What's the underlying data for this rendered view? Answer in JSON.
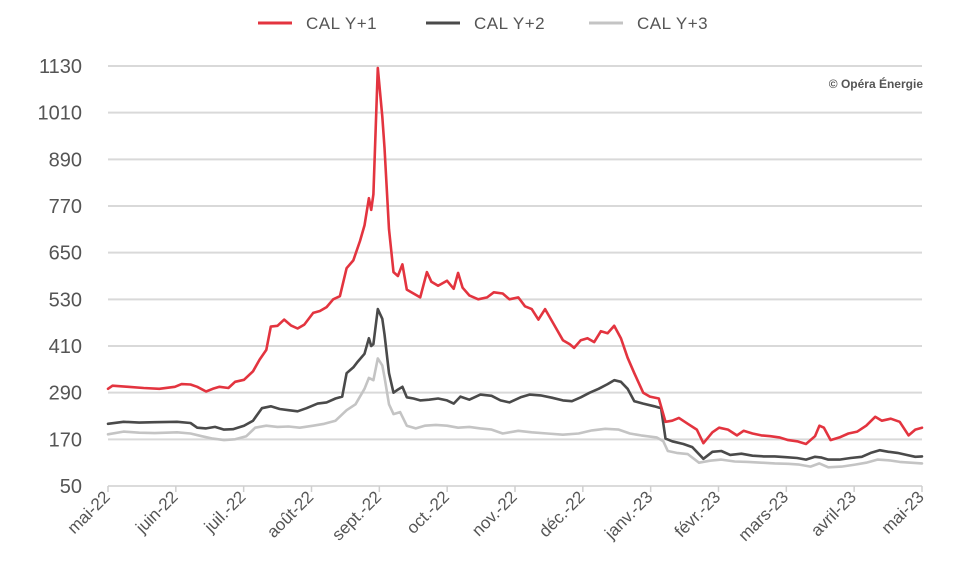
{
  "credit": "© Opéra Énergie",
  "chart_data": {
    "type": "line",
    "title": "",
    "xlabel": "",
    "ylabel": "",
    "ylim": [
      50,
      1130
    ],
    "yticks": [
      50,
      170,
      290,
      410,
      530,
      650,
      770,
      890,
      1010,
      1130
    ],
    "grid": true,
    "legend_position": "top-center",
    "xlim": [
      "2022-05-01",
      "2023-05-01"
    ],
    "x_tick_labels": [
      "mai-22",
      "juin-22",
      "juil.-22",
      "août-22",
      "sept.-22",
      "oct.-22",
      "nov.-22",
      "déc.-22",
      "janv.-23",
      "févr.-23",
      "mars-23",
      "avril-23",
      "mai-23"
    ],
    "series": [
      {
        "name": "CAL Y+1",
        "color": "#e3343f",
        "points": [
          [
            "2022-05-01",
            300
          ],
          [
            "2022-05-03",
            308
          ],
          [
            "2022-05-10",
            305
          ],
          [
            "2022-05-17",
            302
          ],
          [
            "2022-05-24",
            300
          ],
          [
            "2022-05-31",
            305
          ],
          [
            "2022-06-03",
            312
          ],
          [
            "2022-06-07",
            311
          ],
          [
            "2022-06-10",
            305
          ],
          [
            "2022-06-14",
            293
          ],
          [
            "2022-06-17",
            300
          ],
          [
            "2022-06-20",
            305
          ],
          [
            "2022-06-24",
            302
          ],
          [
            "2022-06-27",
            318
          ],
          [
            "2022-07-01",
            323
          ],
          [
            "2022-07-05",
            345
          ],
          [
            "2022-07-08",
            375
          ],
          [
            "2022-07-11",
            400
          ],
          [
            "2022-07-13",
            460
          ],
          [
            "2022-07-16",
            462
          ],
          [
            "2022-07-19",
            478
          ],
          [
            "2022-07-22",
            463
          ],
          [
            "2022-07-25",
            455
          ],
          [
            "2022-07-28",
            465
          ],
          [
            "2022-08-01",
            495
          ],
          [
            "2022-08-04",
            500
          ],
          [
            "2022-08-07",
            510
          ],
          [
            "2022-08-10",
            530
          ],
          [
            "2022-08-13",
            538
          ],
          [
            "2022-08-16",
            610
          ],
          [
            "2022-08-19",
            630
          ],
          [
            "2022-08-22",
            680
          ],
          [
            "2022-08-24",
            720
          ],
          [
            "2022-08-26",
            790
          ],
          [
            "2022-08-27",
            760
          ],
          [
            "2022-08-28",
            800
          ],
          [
            "2022-08-30",
            1125
          ],
          [
            "2022-09-01",
            1000
          ],
          [
            "2022-09-02",
            920
          ],
          [
            "2022-09-04",
            710
          ],
          [
            "2022-09-06",
            600
          ],
          [
            "2022-09-08",
            590
          ],
          [
            "2022-09-10",
            620
          ],
          [
            "2022-09-12",
            555
          ],
          [
            "2022-09-15",
            545
          ],
          [
            "2022-09-18",
            535
          ],
          [
            "2022-09-21",
            600
          ],
          [
            "2022-09-23",
            575
          ],
          [
            "2022-09-26",
            565
          ],
          [
            "2022-09-30",
            578
          ],
          [
            "2022-10-03",
            557
          ],
          [
            "2022-10-05",
            598
          ],
          [
            "2022-10-07",
            560
          ],
          [
            "2022-10-10",
            540
          ],
          [
            "2022-10-14",
            530
          ],
          [
            "2022-10-18",
            535
          ],
          [
            "2022-10-21",
            548
          ],
          [
            "2022-10-25",
            545
          ],
          [
            "2022-10-28",
            530
          ],
          [
            "2022-11-01",
            535
          ],
          [
            "2022-11-04",
            512
          ],
          [
            "2022-11-07",
            505
          ],
          [
            "2022-11-10",
            478
          ],
          [
            "2022-11-13",
            505
          ],
          [
            "2022-11-17",
            465
          ],
          [
            "2022-11-21",
            425
          ],
          [
            "2022-11-24",
            415
          ],
          [
            "2022-11-26",
            405
          ],
          [
            "2022-11-29",
            425
          ],
          [
            "2022-12-02",
            430
          ],
          [
            "2022-12-05",
            420
          ],
          [
            "2022-12-08",
            448
          ],
          [
            "2022-12-11",
            443
          ],
          [
            "2022-12-14",
            462
          ],
          [
            "2022-12-17",
            430
          ],
          [
            "2022-12-20",
            380
          ],
          [
            "2022-12-23",
            340
          ],
          [
            "2022-12-27",
            290
          ],
          [
            "2022-12-30",
            280
          ],
          [
            "2023-01-03",
            275
          ],
          [
            "2023-01-06",
            215
          ],
          [
            "2023-01-09",
            218
          ],
          [
            "2023-01-12",
            225
          ],
          [
            "2023-01-16",
            210
          ],
          [
            "2023-01-20",
            195
          ],
          [
            "2023-01-23",
            160
          ],
          [
            "2023-01-27",
            188
          ],
          [
            "2023-01-30",
            200
          ],
          [
            "2023-02-03",
            195
          ],
          [
            "2023-02-07",
            180
          ],
          [
            "2023-02-10",
            192
          ],
          [
            "2023-02-14",
            185
          ],
          [
            "2023-02-18",
            180
          ],
          [
            "2023-02-22",
            178
          ],
          [
            "2023-02-26",
            175
          ],
          [
            "2023-03-02",
            168
          ],
          [
            "2023-03-06",
            165
          ],
          [
            "2023-03-10",
            158
          ],
          [
            "2023-03-14",
            178
          ],
          [
            "2023-03-16",
            205
          ],
          [
            "2023-03-18",
            200
          ],
          [
            "2023-03-21",
            168
          ],
          [
            "2023-03-25",
            175
          ],
          [
            "2023-03-29",
            185
          ],
          [
            "2023-04-02",
            190
          ],
          [
            "2023-04-06",
            205
          ],
          [
            "2023-04-10",
            228
          ],
          [
            "2023-04-13",
            218
          ],
          [
            "2023-04-17",
            223
          ],
          [
            "2023-04-21",
            215
          ],
          [
            "2023-04-25",
            180
          ],
          [
            "2023-04-28",
            195
          ],
          [
            "2023-05-01",
            200
          ]
        ]
      },
      {
        "name": "CAL Y+2",
        "color": "#4a4a4a",
        "points": [
          [
            "2022-05-01",
            210
          ],
          [
            "2022-05-08",
            215
          ],
          [
            "2022-05-15",
            213
          ],
          [
            "2022-05-22",
            214
          ],
          [
            "2022-06-01",
            215
          ],
          [
            "2022-06-07",
            212
          ],
          [
            "2022-06-10",
            200
          ],
          [
            "2022-06-14",
            198
          ],
          [
            "2022-06-18",
            202
          ],
          [
            "2022-06-22",
            195
          ],
          [
            "2022-06-26",
            196
          ],
          [
            "2022-07-01",
            205
          ],
          [
            "2022-07-05",
            218
          ],
          [
            "2022-07-09",
            250
          ],
          [
            "2022-07-13",
            255
          ],
          [
            "2022-07-17",
            248
          ],
          [
            "2022-07-21",
            245
          ],
          [
            "2022-07-25",
            242
          ],
          [
            "2022-07-29",
            250
          ],
          [
            "2022-08-03",
            262
          ],
          [
            "2022-08-07",
            265
          ],
          [
            "2022-08-11",
            275
          ],
          [
            "2022-08-14",
            280
          ],
          [
            "2022-08-16",
            340
          ],
          [
            "2022-08-19",
            355
          ],
          [
            "2022-08-21",
            370
          ],
          [
            "2022-08-24",
            390
          ],
          [
            "2022-08-26",
            430
          ],
          [
            "2022-08-27",
            410
          ],
          [
            "2022-08-28",
            415
          ],
          [
            "2022-08-30",
            505
          ],
          [
            "2022-09-01",
            480
          ],
          [
            "2022-09-02",
            440
          ],
          [
            "2022-09-04",
            340
          ],
          [
            "2022-09-06",
            290
          ],
          [
            "2022-09-08",
            298
          ],
          [
            "2022-09-10",
            305
          ],
          [
            "2022-09-12",
            278
          ],
          [
            "2022-09-15",
            275
          ],
          [
            "2022-09-18",
            270
          ],
          [
            "2022-09-22",
            272
          ],
          [
            "2022-09-26",
            275
          ],
          [
            "2022-09-30",
            270
          ],
          [
            "2022-10-03",
            262
          ],
          [
            "2022-10-06",
            280
          ],
          [
            "2022-10-10",
            272
          ],
          [
            "2022-10-15",
            285
          ],
          [
            "2022-10-20",
            282
          ],
          [
            "2022-10-24",
            270
          ],
          [
            "2022-10-28",
            265
          ],
          [
            "2022-11-02",
            278
          ],
          [
            "2022-11-06",
            285
          ],
          [
            "2022-11-11",
            283
          ],
          [
            "2022-11-16",
            277
          ],
          [
            "2022-11-21",
            270
          ],
          [
            "2022-11-25",
            268
          ],
          [
            "2022-11-29",
            278
          ],
          [
            "2022-12-03",
            290
          ],
          [
            "2022-12-07",
            300
          ],
          [
            "2022-12-11",
            312
          ],
          [
            "2022-12-14",
            322
          ],
          [
            "2022-12-17",
            318
          ],
          [
            "2022-12-20",
            300
          ],
          [
            "2022-12-23",
            268
          ],
          [
            "2022-12-27",
            262
          ],
          [
            "2023-01-01",
            255
          ],
          [
            "2023-01-04",
            250
          ],
          [
            "2023-01-06",
            172
          ],
          [
            "2023-01-09",
            165
          ],
          [
            "2023-01-14",
            158
          ],
          [
            "2023-01-18",
            150
          ],
          [
            "2023-01-23",
            120
          ],
          [
            "2023-01-27",
            138
          ],
          [
            "2023-01-31",
            140
          ],
          [
            "2023-02-04",
            130
          ],
          [
            "2023-02-09",
            133
          ],
          [
            "2023-02-14",
            128
          ],
          [
            "2023-02-19",
            126
          ],
          [
            "2023-02-24",
            126
          ],
          [
            "2023-03-01",
            124
          ],
          [
            "2023-03-06",
            122
          ],
          [
            "2023-03-10",
            118
          ],
          [
            "2023-03-14",
            125
          ],
          [
            "2023-03-17",
            123
          ],
          [
            "2023-03-20",
            118
          ],
          [
            "2023-03-25",
            118
          ],
          [
            "2023-03-30",
            122
          ],
          [
            "2023-04-04",
            125
          ],
          [
            "2023-04-08",
            135
          ],
          [
            "2023-04-12",
            142
          ],
          [
            "2023-04-16",
            138
          ],
          [
            "2023-04-20",
            135
          ],
          [
            "2023-04-24",
            130
          ],
          [
            "2023-04-28",
            125
          ],
          [
            "2023-05-01",
            126
          ]
        ]
      },
      {
        "name": "CAL Y+3",
        "color": "#c4c4c4",
        "points": [
          [
            "2022-05-01",
            183
          ],
          [
            "2022-05-08",
            190
          ],
          [
            "2022-05-15",
            187
          ],
          [
            "2022-05-22",
            186
          ],
          [
            "2022-06-01",
            188
          ],
          [
            "2022-06-07",
            185
          ],
          [
            "2022-06-12",
            178
          ],
          [
            "2022-06-17",
            172
          ],
          [
            "2022-06-22",
            168
          ],
          [
            "2022-06-27",
            170
          ],
          [
            "2022-07-02",
            178
          ],
          [
            "2022-07-06",
            200
          ],
          [
            "2022-07-11",
            205
          ],
          [
            "2022-07-16",
            202
          ],
          [
            "2022-07-21",
            203
          ],
          [
            "2022-07-26",
            200
          ],
          [
            "2022-08-01",
            205
          ],
          [
            "2022-08-06",
            210
          ],
          [
            "2022-08-11",
            218
          ],
          [
            "2022-08-16",
            245
          ],
          [
            "2022-08-20",
            260
          ],
          [
            "2022-08-24",
            300
          ],
          [
            "2022-08-26",
            328
          ],
          [
            "2022-08-28",
            322
          ],
          [
            "2022-08-30",
            378
          ],
          [
            "2022-09-01",
            360
          ],
          [
            "2022-09-02",
            330
          ],
          [
            "2022-09-04",
            260
          ],
          [
            "2022-09-06",
            235
          ],
          [
            "2022-09-09",
            240
          ],
          [
            "2022-09-12",
            205
          ],
          [
            "2022-09-16",
            198
          ],
          [
            "2022-09-20",
            205
          ],
          [
            "2022-09-25",
            207
          ],
          [
            "2022-09-30",
            205
          ],
          [
            "2022-10-05",
            200
          ],
          [
            "2022-10-10",
            202
          ],
          [
            "2022-10-15",
            198
          ],
          [
            "2022-10-20",
            195
          ],
          [
            "2022-10-25",
            185
          ],
          [
            "2022-11-01",
            192
          ],
          [
            "2022-11-07",
            188
          ],
          [
            "2022-11-14",
            185
          ],
          [
            "2022-11-21",
            182
          ],
          [
            "2022-11-28",
            185
          ],
          [
            "2022-12-04",
            193
          ],
          [
            "2022-12-10",
            197
          ],
          [
            "2022-12-16",
            195
          ],
          [
            "2022-12-21",
            185
          ],
          [
            "2022-12-26",
            180
          ],
          [
            "2023-01-02",
            175
          ],
          [
            "2023-01-05",
            165
          ],
          [
            "2023-01-07",
            140
          ],
          [
            "2023-01-11",
            135
          ],
          [
            "2023-01-16",
            132
          ],
          [
            "2023-01-21",
            110
          ],
          [
            "2023-01-26",
            115
          ],
          [
            "2023-01-31",
            118
          ],
          [
            "2023-02-06",
            113
          ],
          [
            "2023-02-12",
            112
          ],
          [
            "2023-02-18",
            110
          ],
          [
            "2023-02-24",
            108
          ],
          [
            "2023-03-02",
            107
          ],
          [
            "2023-03-07",
            105
          ],
          [
            "2023-03-12",
            100
          ],
          [
            "2023-03-16",
            108
          ],
          [
            "2023-03-20",
            98
          ],
          [
            "2023-03-26",
            100
          ],
          [
            "2023-04-01",
            105
          ],
          [
            "2023-04-06",
            110
          ],
          [
            "2023-04-11",
            118
          ],
          [
            "2023-04-16",
            116
          ],
          [
            "2023-04-21",
            112
          ],
          [
            "2023-04-26",
            110
          ],
          [
            "2023-05-01",
            108
          ]
        ]
      }
    ]
  }
}
